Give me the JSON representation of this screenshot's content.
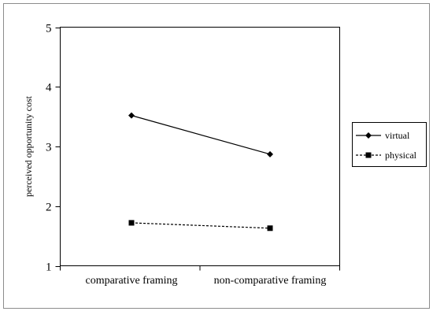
{
  "chart_data": {
    "type": "line",
    "title": "",
    "xlabel": "",
    "ylabel": "perceived opportunity cost",
    "categories": [
      "comparative framing",
      "non-comparative framing"
    ],
    "ylim": [
      1,
      5
    ],
    "yticks": [
      1,
      2,
      3,
      4,
      5
    ],
    "grid": false,
    "legend_position": "right",
    "series": [
      {
        "name": "virtual",
        "values": [
          3.52,
          2.87
        ],
        "line_style": "solid",
        "marker": "diamond",
        "color": "#000000"
      },
      {
        "name": "physical",
        "values": [
          1.72,
          1.63
        ],
        "line_style": "dashed",
        "marker": "square",
        "color": "#000000"
      }
    ]
  }
}
